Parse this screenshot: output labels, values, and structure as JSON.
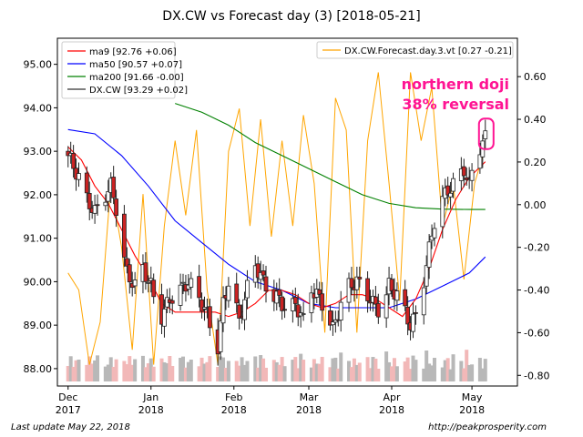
{
  "chart_data": {
    "type": "candlestick",
    "title": "DX.CW vs Forecast day (3)  [2018-05-21]",
    "x_ticks": [
      {
        "label": "Dec",
        "year": "2017",
        "x": 0
      },
      {
        "label": "Jan",
        "year": "2018",
        "x": 31
      },
      {
        "label": "Feb",
        "year": "2018",
        "x": 62
      },
      {
        "label": "Mar",
        "year": "2018",
        "x": 90
      },
      {
        "label": "Apr",
        "year": "2018",
        "x": 121
      },
      {
        "label": "May",
        "year": "2018",
        "x": 151
      }
    ],
    "xlim": [
      -4,
      168
    ],
    "y_left": {
      "ticks": [
        "95.00",
        "94.00",
        "93.00",
        "92.00",
        "91.00",
        "90.00",
        "89.00",
        "88.00"
      ],
      "lim": [
        87.6,
        95.6
      ]
    },
    "y_right": {
      "ticks": [
        "0.60",
        "0.40",
        "0.20",
        "0.00",
        "-0.20",
        "-0.40",
        "-0.60",
        "-0.80"
      ],
      "lim": [
        -0.85,
        0.78
      ]
    },
    "legend_left": {
      "placement": "top-left",
      "entries": [
        {
          "label": "ma9 [92.76 +0.06]",
          "color": "#ff0000"
        },
        {
          "label": "ma50 [90.57 +0.07]",
          "color": "#0000ff"
        },
        {
          "label": "ma200 [91.66 -0.00]",
          "color": "#008000"
        },
        {
          "label": "DX.CW [93.29 +0.02]",
          "color": "#333333"
        }
      ]
    },
    "legend_right": {
      "placement": "top-right",
      "entries": [
        {
          "label": "DX.CW.Forecast.day.3.vt [0.27 -0.21]",
          "color": "#ffa500"
        }
      ]
    },
    "annotation": {
      "lines": [
        "northern doji",
        "38% reversal"
      ],
      "color": "#ff1493"
    },
    "price_anchors": {
      "x": [
        0,
        4,
        7,
        10,
        13,
        16,
        18,
        20,
        22,
        25,
        28,
        31,
        33,
        35,
        38,
        42,
        45,
        48,
        51,
        54,
        56,
        58,
        60,
        62,
        64,
        66,
        68,
        70,
        73,
        76,
        79,
        82,
        85,
        88,
        90,
        93,
        96,
        99,
        102,
        105,
        108,
        111,
        114,
        117,
        120,
        123,
        126,
        128,
        131,
        134,
        137,
        140,
        142,
        145,
        148,
        150,
        152,
        154,
        156
      ],
      "y": [
        92.9,
        92.4,
        91.9,
        91.6,
        91.9,
        92.2,
        91.7,
        90.8,
        90.2,
        89.9,
        90.3,
        89.9,
        89.4,
        89.2,
        89.6,
        89.8,
        90.0,
        89.7,
        89.4,
        88.8,
        88.5,
        89.5,
        90.0,
        89.6,
        89.1,
        89.6,
        90.1,
        90.4,
        90.0,
        89.7,
        89.6,
        89.3,
        89.5,
        89.1,
        89.9,
        89.7,
        89.4,
        88.9,
        89.5,
        89.9,
        90.0,
        89.8,
        89.5,
        89.3,
        89.9,
        89.7,
        89.3,
        89.0,
        89.3,
        90.4,
        91.4,
        91.9,
        92.1,
        92.3,
        92.6,
        92.2,
        92.9,
        93.1,
        93.3
      ]
    },
    "ma9_anchors": {
      "x": [
        0,
        5,
        10,
        15,
        20,
        25,
        30,
        35,
        40,
        45,
        50,
        55,
        60,
        65,
        70,
        75,
        80,
        85,
        90,
        95,
        100,
        105,
        110,
        115,
        120,
        125,
        130,
        135,
        140,
        145,
        150,
        156
      ],
      "y": [
        93.1,
        92.8,
        92.2,
        91.8,
        91.2,
        90.6,
        90.1,
        89.5,
        89.3,
        89.3,
        89.3,
        89.3,
        89.2,
        89.3,
        89.5,
        89.8,
        89.8,
        89.7,
        89.5,
        89.4,
        89.5,
        89.7,
        89.7,
        89.6,
        89.4,
        89.2,
        89.6,
        90.3,
        91.2,
        91.9,
        92.4,
        92.76
      ]
    },
    "ma50_anchors": {
      "x": [
        0,
        10,
        20,
        30,
        40,
        50,
        60,
        70,
        80,
        90,
        100,
        110,
        120,
        130,
        140,
        150,
        156
      ],
      "y": [
        93.5,
        93.4,
        92.9,
        92.2,
        91.4,
        90.9,
        90.4,
        90.0,
        89.8,
        89.5,
        89.4,
        89.4,
        89.4,
        89.6,
        89.9,
        90.2,
        90.57
      ]
    },
    "ma200_anchors": {
      "x": [
        40,
        50,
        60,
        70,
        80,
        90,
        100,
        110,
        120,
        130,
        140,
        150,
        156
      ],
      "y": [
        94.1,
        93.9,
        93.6,
        93.2,
        92.9,
        92.6,
        92.3,
        92.0,
        91.8,
        91.7,
        91.67,
        91.66,
        91.66
      ]
    },
    "forecast_anchors": {
      "x": [
        0,
        4,
        8,
        12,
        16,
        20,
        24,
        28,
        32,
        36,
        40,
        44,
        48,
        52,
        56,
        60,
        64,
        68,
        72,
        76,
        80,
        84,
        88,
        92,
        96,
        100,
        104,
        108,
        112,
        116,
        120,
        124,
        128,
        132,
        136,
        140,
        144,
        148,
        152,
        156
      ],
      "y": [
        -0.32,
        -0.4,
        -0.75,
        -0.55,
        0.1,
        -0.2,
        -0.68,
        0.05,
        -0.75,
        -0.1,
        0.3,
        -0.05,
        0.35,
        -0.4,
        -0.75,
        0.25,
        0.45,
        -0.1,
        0.4,
        -0.15,
        0.3,
        -0.1,
        0.42,
        0.1,
        -0.6,
        0.5,
        0.35,
        -0.6,
        0.3,
        0.62,
        0.1,
        -0.45,
        0.62,
        0.3,
        0.55,
        -0.1,
        0.1,
        -0.35,
        0.1,
        0.27
      ]
    },
    "volume_scale": 1,
    "footer_left": "Last update May 22, 2018",
    "footer_right": "http://peakprosperity.com"
  }
}
